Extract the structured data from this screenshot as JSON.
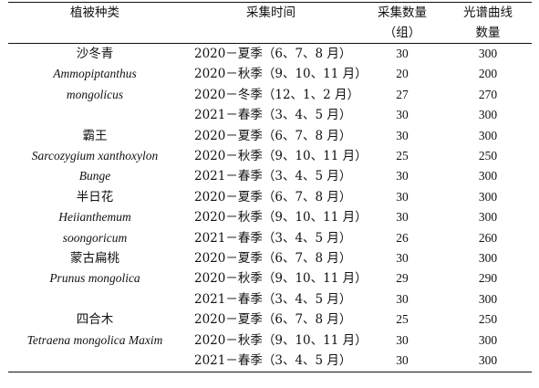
{
  "header": {
    "row1": [
      "植被种类",
      "采集时间",
      "采集数量",
      "光谱曲线"
    ],
    "row2": [
      "",
      "",
      "（组）",
      "数量"
    ]
  },
  "rows": [
    {
      "species": "沙冬青",
      "latin": false,
      "time": "2020－夏季（6、7、8 月）",
      "count": "30",
      "curves": "300"
    },
    {
      "species": "Ammopiptanthus",
      "latin": true,
      "time": "2020－秋季（9、10、11 月）",
      "count": "20",
      "curves": "200"
    },
    {
      "species": "mongolicus",
      "latin": true,
      "time": "2020－冬季（12、1、2 月）",
      "count": "27",
      "curves": "270"
    },
    {
      "species": "",
      "latin": false,
      "time": "2021－春季（3、4、5 月）",
      "count": "30",
      "curves": "300"
    },
    {
      "species": "霸王",
      "latin": false,
      "time": "2020－夏季（6、7、8 月）",
      "count": "30",
      "curves": "300"
    },
    {
      "species": "Sarcozygium xanthoxylon",
      "latin": true,
      "time": "2020－秋季（9、10、11 月）",
      "count": "25",
      "curves": "250"
    },
    {
      "species": "Bunge",
      "latin": true,
      "time": "2021－春季（3、4、5 月）",
      "count": "30",
      "curves": "300"
    },
    {
      "species": "半日花",
      "latin": false,
      "time": "2020－夏季（6、7、8 月）",
      "count": "30",
      "curves": "300"
    },
    {
      "species": "Heiianthemum",
      "latin": true,
      "time": "2020－秋季（9、10、11 月）",
      "count": "30",
      "curves": "300"
    },
    {
      "species": "soongoricum",
      "latin": true,
      "time": "2021－春季（3、4、5 月）",
      "count": "26",
      "curves": "260"
    },
    {
      "species": "蒙古扁桃",
      "latin": false,
      "time": "2020－夏季（6、7、8 月）",
      "count": "30",
      "curves": "300"
    },
    {
      "species": "Prunus mongolica",
      "latin": true,
      "time": "2020－秋季（9、10、11 月）",
      "count": "29",
      "curves": "290"
    },
    {
      "species": "",
      "latin": false,
      "time": "2021－春季（3、4、5 月）",
      "count": "30",
      "curves": "300"
    },
    {
      "species": "四合木",
      "latin": false,
      "time": "2020－夏季（6、7、8 月）",
      "count": "25",
      "curves": "250"
    },
    {
      "species": "Tetraena mongolica Maxim",
      "latin": true,
      "time": "2020－秋季（9、10、11 月）",
      "count": "30",
      "curves": "300"
    },
    {
      "species": "",
      "latin": false,
      "time": "2021－春季（3、4、5 月）",
      "count": "30",
      "curves": "300"
    }
  ]
}
